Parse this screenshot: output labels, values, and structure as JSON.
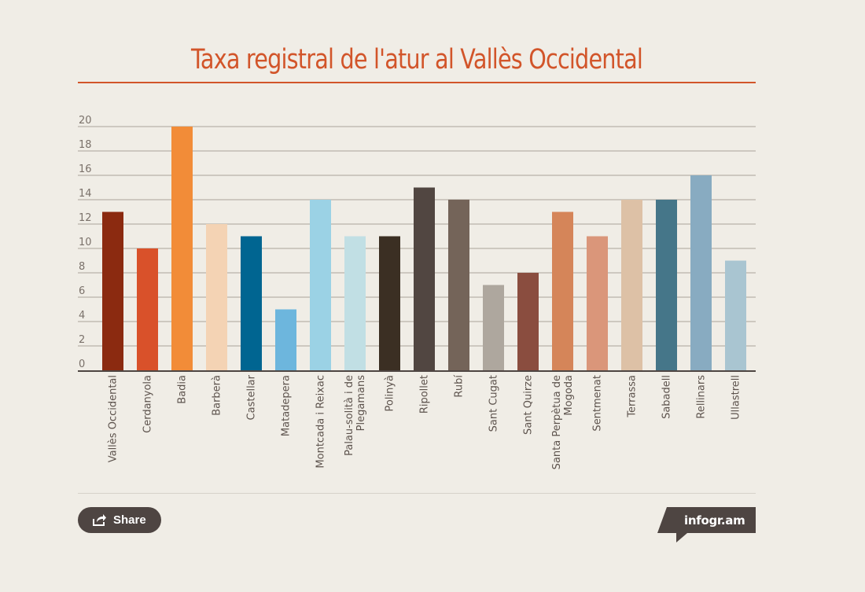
{
  "title": "Taxa registral de l'atur al Vallès Occidental",
  "share_label": "Share",
  "brand_label": "infogr.am",
  "icons": {
    "share": "share-icon"
  },
  "chart_data": {
    "type": "bar",
    "title": "Taxa registral de l'atur al Vallès Occidental",
    "xlabel": "",
    "ylabel": "",
    "ylim": [
      0,
      20
    ],
    "yticks": [
      0,
      2,
      4,
      6,
      8,
      10,
      12,
      14,
      16,
      18,
      20
    ],
    "grid": true,
    "categories": [
      "Vallès Occidental",
      "Cerdanyola",
      "Badia",
      "Barberà",
      "Castellar",
      "Matadepera",
      "Montcada i Reixac",
      "Palau-solità i de Plegamans",
      "Polinyà",
      "Ripollet",
      "Rubí",
      "Sant Cugat",
      "Sant Quirze",
      "Santa Perpètua de Mogoda",
      "Sentmenat",
      "Terrassa",
      "Sabadell",
      "Rellinars",
      "Ullastrell"
    ],
    "values": [
      13,
      10,
      20,
      12,
      11,
      5,
      14,
      11,
      11,
      15,
      14,
      7,
      8,
      13,
      11,
      14,
      14,
      16,
      9
    ],
    "colors": [
      "#8b2a10",
      "#d9512a",
      "#f28c38",
      "#f4d3b4",
      "#006591",
      "#6db6dd",
      "#9bd2e5",
      "#c1dfe4",
      "#3b2f23",
      "#514641",
      "#746459",
      "#aea79e",
      "#8a4d3f",
      "#d58559",
      "#da967a",
      "#ddc1a6",
      "#457689",
      "#88abc1",
      "#a9c5d1"
    ]
  }
}
